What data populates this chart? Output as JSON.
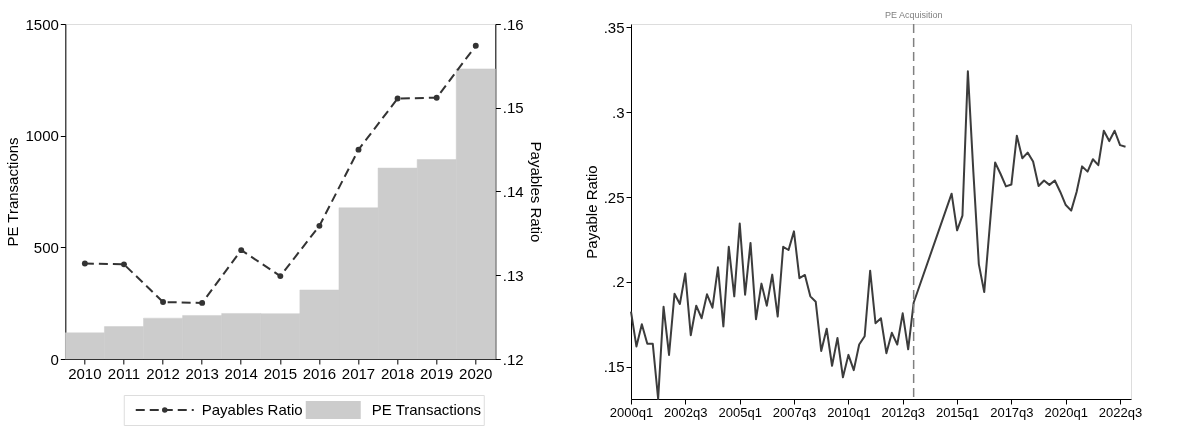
{
  "chart_data": [
    {
      "type": "bar",
      "categories": [
        "2010",
        "2011",
        "2012",
        "2013",
        "2014",
        "2015",
        "2016",
        "2017",
        "2018",
        "2019",
        "2020"
      ],
      "series": [
        {
          "name": "Payables Ratio",
          "type": "line",
          "axis": "y2",
          "color": "#333333",
          "marker": "circle",
          "line_style": "dashed",
          "values": [
            0.1314,
            0.1313,
            0.1268,
            0.1267,
            0.133,
            0.1299,
            0.1359,
            0.145,
            0.1511,
            0.1512,
            0.1574
          ]
        },
        {
          "name": "PE Transactions",
          "type": "bar",
          "color": "#cccccc",
          "values": [
            117,
            145,
            183,
            195,
            204,
            203,
            309,
            677,
            855,
            893,
            1299
          ]
        }
      ],
      "ylabel": "PE Transactions",
      "y2label": "Payables Ratio",
      "ylim": [
        0,
        1500
      ],
      "yticks": [
        0,
        500,
        1000,
        1500
      ],
      "y2lim": [
        0.12,
        0.16
      ],
      "y2ticks": [
        {
          "value": 0.12,
          "label": ".12"
        },
        {
          "value": 0.13,
          "label": ".13"
        },
        {
          "value": 0.14,
          "label": ".14"
        },
        {
          "value": 0.15,
          "label": ".15"
        },
        {
          "value": 0.16,
          "label": ".16"
        }
      ],
      "legend": "bottom",
      "grid": false
    },
    {
      "type": "line",
      "ylabel": "Payable Ratio",
      "series": [
        {
          "color": "#3c3c3c",
          "line_style": "solid",
          "marker": "none",
          "x": [
            "2000-01",
            "2000-04",
            "2000-07",
            "2000-10",
            "2001-01",
            "2001-04",
            "2001-07",
            "2001-10",
            "2002-01",
            "2002-04",
            "2002-07",
            "2002-10",
            "2003-01",
            "2003-04",
            "2003-07",
            "2003-10",
            "2004-01",
            "2004-04",
            "2004-07",
            "2004-10",
            "2005-01",
            "2005-04",
            "2005-07",
            "2005-10",
            "2006-01",
            "2006-04",
            "2006-07",
            "2006-10",
            "2007-01",
            "2007-04",
            "2007-07",
            "2007-10",
            "2008-01",
            "2008-04",
            "2008-07",
            "2008-10",
            "2009-01",
            "2009-04",
            "2009-07",
            "2009-10",
            "2010-01",
            "2010-04",
            "2010-07",
            "2010-10",
            "2011-01",
            "2011-04",
            "2011-07",
            "2011-10",
            "2012-01",
            "2012-04",
            "2012-07",
            "2012-10",
            "2013-01",
            "2014-10",
            "2015-01",
            "2015-04",
            "2015-07",
            "2015-10",
            "2016-01",
            "2016-04",
            "2016-07",
            "2016-10",
            "2017-01",
            "2017-04",
            "2017-07",
            "2017-10",
            "2018-01",
            "2018-04",
            "2018-07",
            "2018-10",
            "2019-01",
            "2019-04",
            "2019-07",
            "2019-10",
            "2020-01",
            "2020-04",
            "2020-07",
            "2020-10",
            "2021-01",
            "2021-04",
            "2021-07",
            "2021-10",
            "2022-01",
            "2022-04",
            "2022-07",
            "2022-10"
          ],
          "values": [
            0.1825,
            0.162,
            0.175,
            0.1635,
            0.1635,
            0.131,
            0.1854,
            0.157,
            0.193,
            0.187,
            0.205,
            0.1686,
            0.186,
            0.1786,
            0.1927,
            0.1848,
            0.2086,
            0.1738,
            0.2207,
            0.1915,
            0.2344,
            0.1925,
            0.223,
            0.178,
            0.199,
            0.186,
            0.2043,
            0.1796,
            0.2207,
            0.2188,
            0.2298,
            0.2022,
            0.2041,
            0.1915,
            0.1883,
            0.1593,
            0.1724,
            0.1506,
            0.167,
            0.1438,
            0.157,
            0.148,
            0.1631,
            0.168,
            0.2066,
            0.1757,
            0.1786,
            0.158,
            0.17,
            0.1631,
            0.1815,
            0.1603,
            0.1877,
            0.252,
            0.2304,
            0.2391,
            0.3241,
            0.265,
            0.2105,
            0.194,
            0.232,
            0.2704,
            0.2636,
            0.2563,
            0.2574,
            0.2862,
            0.2729,
            0.2762,
            0.271,
            0.2565,
            0.2598,
            0.2572,
            0.2598,
            0.253,
            0.2453,
            0.242,
            0.253,
            0.2681,
            0.265,
            0.2723,
            0.2688,
            0.2891,
            0.283,
            0.2891,
            0.2806,
            0.2797
          ]
        }
      ],
      "xlim": [
        "2000-01",
        "2023-01"
      ],
      "xticks": [
        {
          "value": "2000-01",
          "label": "2000q1"
        },
        {
          "value": "2002-07",
          "label": "2002q3"
        },
        {
          "value": "2005-01",
          "label": "2005q1"
        },
        {
          "value": "2007-07",
          "label": "2007q3"
        },
        {
          "value": "2010-01",
          "label": "2010q1"
        },
        {
          "value": "2012-07",
          "label": "2012q3"
        },
        {
          "value": "2015-01",
          "label": "2015q1"
        },
        {
          "value": "2017-07",
          "label": "2017q3"
        },
        {
          "value": "2020-01",
          "label": "2020q1"
        },
        {
          "value": "2022-07",
          "label": "2022q3"
        }
      ],
      "ylim": [
        0.131,
        0.352
      ],
      "yticks": [
        {
          "value": 0.15,
          "label": ".15"
        },
        {
          "value": 0.2,
          "label": ".2"
        },
        {
          "value": 0.25,
          "label": ".25"
        },
        {
          "value": 0.3,
          "label": ".3"
        },
        {
          "value": 0.35,
          "label": ".35"
        }
      ],
      "ref_lines": [
        {
          "axis": "x",
          "value": "2013-01",
          "label": "PE Acquisition",
          "color": "#808080",
          "line_style": "dashed"
        }
      ],
      "grid": false
    }
  ]
}
